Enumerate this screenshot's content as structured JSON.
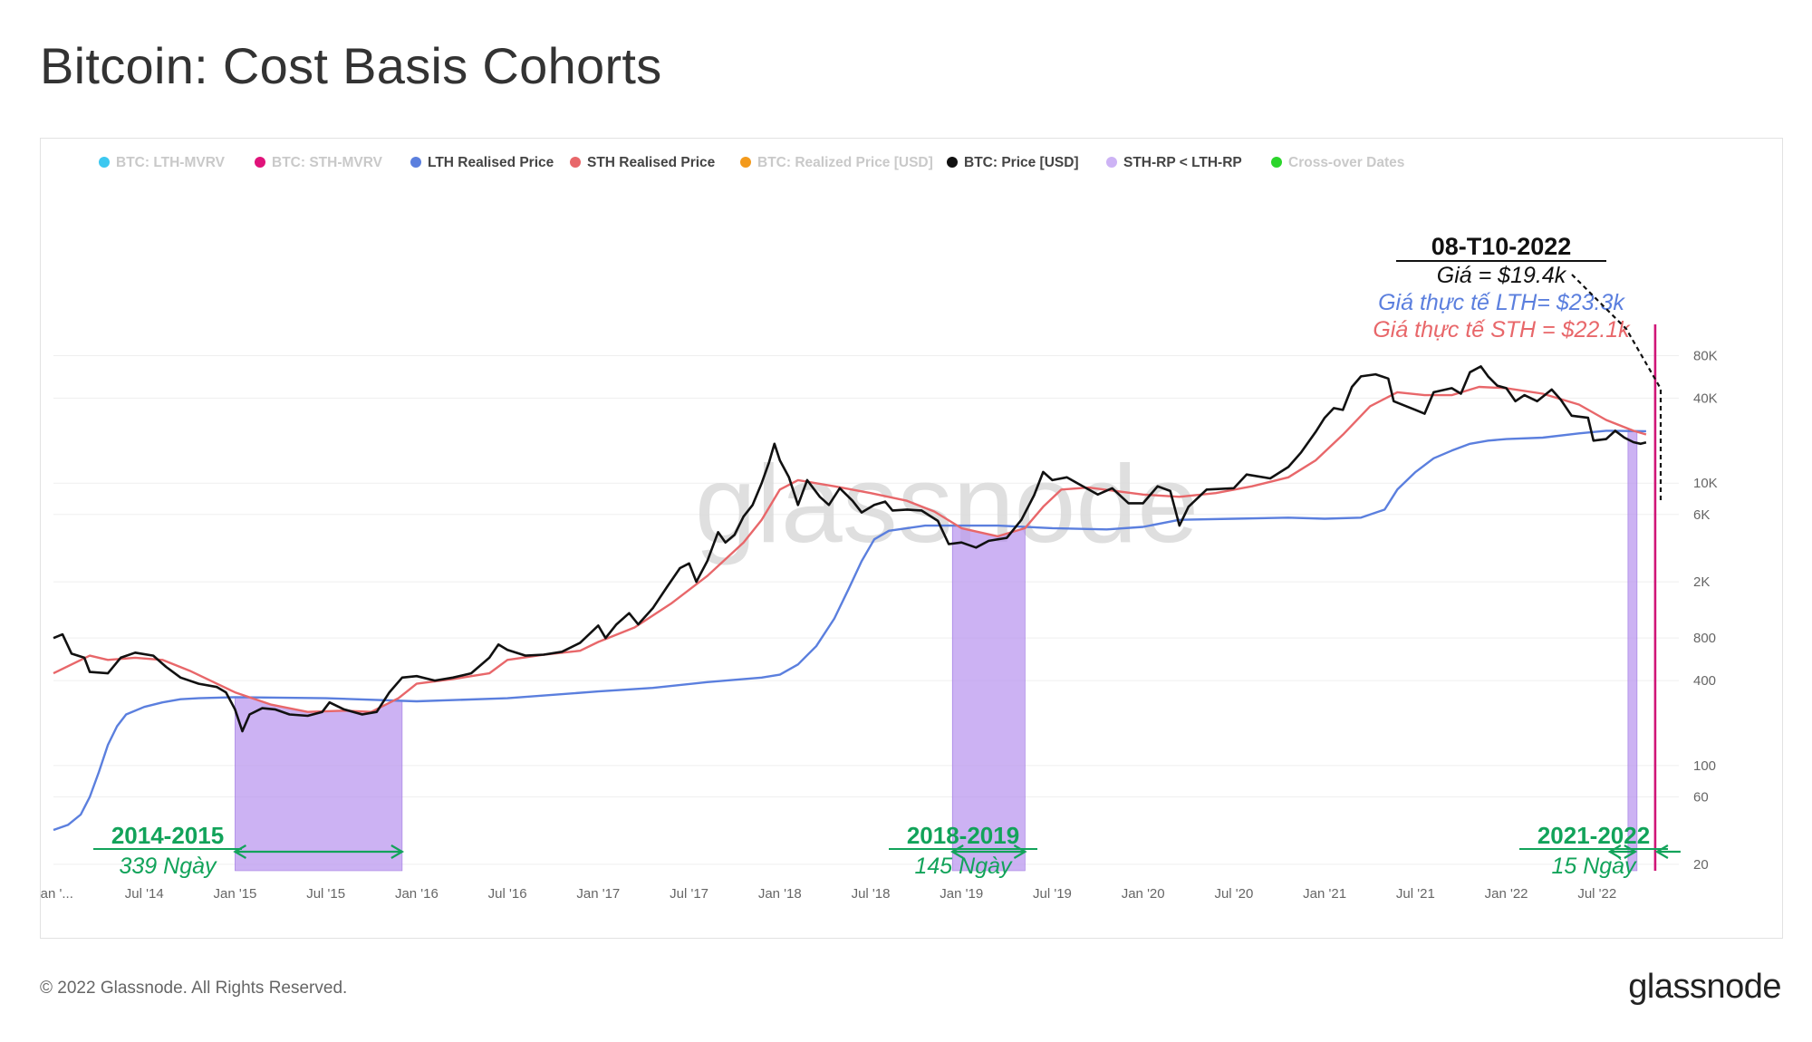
{
  "page": {
    "title": "Bitcoin: Cost Basis Cohorts",
    "copyright": "© 2022 Glassnode. All Rights Reserved.",
    "logo": "glassnode",
    "watermark": "glassnode"
  },
  "colors": {
    "lth": "#5b7fde",
    "sth": "#e8676a",
    "price": "#111111",
    "shade": "#b894ee",
    "date_line": "#d01577",
    "annotation_green": "#12a35a",
    "legend_faded": "#c9c9c9"
  },
  "legend": [
    {
      "label": "BTC: LTH-MVRV",
      "color": "#3cc8f0",
      "faded": true
    },
    {
      "label": "BTC: STH-MVRV",
      "color": "#e0137a",
      "faded": true
    },
    {
      "label": "LTH Realised Price",
      "color": "#5b7fde",
      "faded": false
    },
    {
      "label": "STH Realised Price",
      "color": "#e8676a",
      "faded": false
    },
    {
      "label": "BTC: Realized Price [USD]",
      "color": "#f39a1c",
      "faded": true
    },
    {
      "label": "BTC: Price [USD]",
      "color": "#111111",
      "faded": false
    },
    {
      "label": "STH-RP < LTH-RP",
      "color": "#cdb3f5",
      "faded": false
    },
    {
      "label": "Cross-over Dates",
      "color": "#2bd52b",
      "faded": true
    }
  ],
  "current_box": {
    "date": "08-T10-2022",
    "price_label": "Giá = $19.4k",
    "lth_label": "Giá thực tế LTH= $23.3k",
    "sth_label": "Giá thực tế STH = $22.1k"
  },
  "cohort_annotations": [
    {
      "period": "2014-2015",
      "duration": "339 Ngày",
      "start": 2015.0,
      "end": 2015.92
    },
    {
      "period": "2018-2019",
      "duration": "145 Ngày",
      "start": 2018.95,
      "end": 2019.35
    },
    {
      "period": "2021-2022",
      "duration": "15 Ngày",
      "start": 2022.67,
      "end": 2022.72
    }
  ],
  "chart_data": {
    "type": "line",
    "title": "Bitcoin: Cost Basis Cohorts",
    "y_scale": "log",
    "ylim": [
      18,
      120000
    ],
    "xlim": [
      2014.0,
      2022.95
    ],
    "x_ticks": [
      {
        "x": 2014.0,
        "label": "Jan '..."
      },
      {
        "x": 2014.5,
        "label": "Jul '14"
      },
      {
        "x": 2015.0,
        "label": "Jan '15"
      },
      {
        "x": 2015.5,
        "label": "Jul '15"
      },
      {
        "x": 2016.0,
        "label": "Jan '16"
      },
      {
        "x": 2016.5,
        "label": "Jul '16"
      },
      {
        "x": 2017.0,
        "label": "Jan '17"
      },
      {
        "x": 2017.5,
        "label": "Jul '17"
      },
      {
        "x": 2018.0,
        "label": "Jan '18"
      },
      {
        "x": 2018.5,
        "label": "Jul '18"
      },
      {
        "x": 2019.0,
        "label": "Jan '19"
      },
      {
        "x": 2019.5,
        "label": "Jul '19"
      },
      {
        "x": 2020.0,
        "label": "Jan '20"
      },
      {
        "x": 2020.5,
        "label": "Jul '20"
      },
      {
        "x": 2021.0,
        "label": "Jan '21"
      },
      {
        "x": 2021.5,
        "label": "Jul '21"
      },
      {
        "x": 2022.0,
        "label": "Jan '22"
      },
      {
        "x": 2022.5,
        "label": "Jul '22"
      }
    ],
    "y_ticks": [
      {
        "v": 20,
        "label": "20"
      },
      {
        "v": 60,
        "label": "60"
      },
      {
        "v": 100,
        "label": "100"
      },
      {
        "v": 400,
        "label": "400"
      },
      {
        "v": 800,
        "label": "800"
      },
      {
        "v": 2000,
        "label": "2K"
      },
      {
        "v": 6000,
        "label": "6K"
      },
      {
        "v": 10000,
        "label": "10K"
      },
      {
        "v": 40000,
        "label": "40K"
      },
      {
        "v": 80000,
        "label": "80K"
      }
    ],
    "grid": true,
    "shaded_periods": [
      {
        "start": 2015.0,
        "end": 2015.92,
        "label": "STH-RP < LTH-RP"
      },
      {
        "start": 2018.95,
        "end": 2019.35,
        "label": "STH-RP < LTH-RP"
      },
      {
        "start": 2022.67,
        "end": 2022.72,
        "label": "STH-RP < LTH-RP"
      }
    ],
    "current_date_x": 2022.77,
    "series": [
      {
        "name": "BTC: Price [USD]",
        "color": "#111111",
        "points": [
          [
            2014.0,
            800
          ],
          [
            2014.05,
            850
          ],
          [
            2014.1,
            620
          ],
          [
            2014.17,
            580
          ],
          [
            2014.2,
            460
          ],
          [
            2014.3,
            450
          ],
          [
            2014.37,
            580
          ],
          [
            2014.45,
            630
          ],
          [
            2014.55,
            600
          ],
          [
            2014.62,
            500
          ],
          [
            2014.7,
            420
          ],
          [
            2014.8,
            380
          ],
          [
            2014.9,
            360
          ],
          [
            2014.95,
            330
          ],
          [
            2015.0,
            250
          ],
          [
            2015.04,
            175
          ],
          [
            2015.08,
            230
          ],
          [
            2015.15,
            255
          ],
          [
            2015.22,
            250
          ],
          [
            2015.3,
            230
          ],
          [
            2015.4,
            225
          ],
          [
            2015.48,
            240
          ],
          [
            2015.52,
            280
          ],
          [
            2015.6,
            250
          ],
          [
            2015.7,
            230
          ],
          [
            2015.78,
            240
          ],
          [
            2015.85,
            330
          ],
          [
            2015.92,
            420
          ],
          [
            2016.0,
            430
          ],
          [
            2016.1,
            400
          ],
          [
            2016.2,
            420
          ],
          [
            2016.3,
            450
          ],
          [
            2016.4,
            580
          ],
          [
            2016.45,
            720
          ],
          [
            2016.5,
            660
          ],
          [
            2016.6,
            600
          ],
          [
            2016.7,
            610
          ],
          [
            2016.8,
            640
          ],
          [
            2016.9,
            740
          ],
          [
            2017.0,
            980
          ],
          [
            2017.04,
            800
          ],
          [
            2017.1,
            1000
          ],
          [
            2017.17,
            1200
          ],
          [
            2017.22,
            1000
          ],
          [
            2017.3,
            1300
          ],
          [
            2017.38,
            1850
          ],
          [
            2017.45,
            2500
          ],
          [
            2017.5,
            2700
          ],
          [
            2017.54,
            2000
          ],
          [
            2017.6,
            2800
          ],
          [
            2017.66,
            4500
          ],
          [
            2017.7,
            3800
          ],
          [
            2017.75,
            4300
          ],
          [
            2017.8,
            5800
          ],
          [
            2017.85,
            7000
          ],
          [
            2017.9,
            10000
          ],
          [
            2017.94,
            14000
          ],
          [
            2017.97,
            19000
          ],
          [
            2018.0,
            14500
          ],
          [
            2018.05,
            11000
          ],
          [
            2018.1,
            7000
          ],
          [
            2018.15,
            10500
          ],
          [
            2018.22,
            8000
          ],
          [
            2018.27,
            7000
          ],
          [
            2018.33,
            9200
          ],
          [
            2018.4,
            7500
          ],
          [
            2018.45,
            6200
          ],
          [
            2018.52,
            7000
          ],
          [
            2018.58,
            7400
          ],
          [
            2018.62,
            6400
          ],
          [
            2018.7,
            6500
          ],
          [
            2018.78,
            6400
          ],
          [
            2018.87,
            5400
          ],
          [
            2018.93,
            3700
          ],
          [
            2019.0,
            3800
          ],
          [
            2019.08,
            3500
          ],
          [
            2019.15,
            3900
          ],
          [
            2019.25,
            4100
          ],
          [
            2019.33,
            5500
          ],
          [
            2019.4,
            8200
          ],
          [
            2019.45,
            12000
          ],
          [
            2019.5,
            10500
          ],
          [
            2019.58,
            11000
          ],
          [
            2019.65,
            9800
          ],
          [
            2019.75,
            8300
          ],
          [
            2019.83,
            9200
          ],
          [
            2019.92,
            7200
          ],
          [
            2020.0,
            7200
          ],
          [
            2020.08,
            9500
          ],
          [
            2020.15,
            8800
          ],
          [
            2020.2,
            5000
          ],
          [
            2020.25,
            6800
          ],
          [
            2020.35,
            9000
          ],
          [
            2020.5,
            9200
          ],
          [
            2020.57,
            11500
          ],
          [
            2020.7,
            10800
          ],
          [
            2020.8,
            13000
          ],
          [
            2020.87,
            16500
          ],
          [
            2020.95,
            23000
          ],
          [
            2021.0,
            29000
          ],
          [
            2021.05,
            34000
          ],
          [
            2021.1,
            33000
          ],
          [
            2021.15,
            48000
          ],
          [
            2021.2,
            57000
          ],
          [
            2021.28,
            59000
          ],
          [
            2021.35,
            55000
          ],
          [
            2021.38,
            38000
          ],
          [
            2021.45,
            35000
          ],
          [
            2021.5,
            33000
          ],
          [
            2021.55,
            31000
          ],
          [
            2021.6,
            44000
          ],
          [
            2021.7,
            47000
          ],
          [
            2021.75,
            43000
          ],
          [
            2021.8,
            61000
          ],
          [
            2021.86,
            67000
          ],
          [
            2021.9,
            57000
          ],
          [
            2021.95,
            49000
          ],
          [
            2022.0,
            47000
          ],
          [
            2022.05,
            38000
          ],
          [
            2022.1,
            42000
          ],
          [
            2022.17,
            38000
          ],
          [
            2022.25,
            46000
          ],
          [
            2022.3,
            39000
          ],
          [
            2022.36,
            30000
          ],
          [
            2022.45,
            29000
          ],
          [
            2022.48,
            20000
          ],
          [
            2022.55,
            20500
          ],
          [
            2022.6,
            23500
          ],
          [
            2022.65,
            21000
          ],
          [
            2022.7,
            19500
          ],
          [
            2022.74,
            19000
          ],
          [
            2022.77,
            19400
          ]
        ]
      },
      {
        "name": "LTH Realised Price",
        "color": "#5b7fde",
        "points": [
          [
            2014.0,
            35
          ],
          [
            2014.08,
            38
          ],
          [
            2014.15,
            45
          ],
          [
            2014.2,
            60
          ],
          [
            2014.25,
            90
          ],
          [
            2014.3,
            140
          ],
          [
            2014.35,
            190
          ],
          [
            2014.4,
            230
          ],
          [
            2014.5,
            260
          ],
          [
            2014.6,
            280
          ],
          [
            2014.7,
            295
          ],
          [
            2014.8,
            300
          ],
          [
            2015.0,
            305
          ],
          [
            2015.5,
            300
          ],
          [
            2016.0,
            285
          ],
          [
            2016.5,
            300
          ],
          [
            2017.0,
            335
          ],
          [
            2017.3,
            355
          ],
          [
            2017.6,
            390
          ],
          [
            2017.9,
            420
          ],
          [
            2018.0,
            440
          ],
          [
            2018.1,
            520
          ],
          [
            2018.2,
            700
          ],
          [
            2018.3,
            1100
          ],
          [
            2018.38,
            1800
          ],
          [
            2018.45,
            2800
          ],
          [
            2018.52,
            4000
          ],
          [
            2018.6,
            4600
          ],
          [
            2018.8,
            5000
          ],
          [
            2019.0,
            5000
          ],
          [
            2019.2,
            5000
          ],
          [
            2019.5,
            4800
          ],
          [
            2019.8,
            4700
          ],
          [
            2020.0,
            4900
          ],
          [
            2020.2,
            5500
          ],
          [
            2020.5,
            5600
          ],
          [
            2020.8,
            5700
          ],
          [
            2021.0,
            5600
          ],
          [
            2021.2,
            5700
          ],
          [
            2021.33,
            6500
          ],
          [
            2021.4,
            9000
          ],
          [
            2021.5,
            12000
          ],
          [
            2021.6,
            15000
          ],
          [
            2021.7,
            17000
          ],
          [
            2021.8,
            19000
          ],
          [
            2021.9,
            20000
          ],
          [
            2022.0,
            20500
          ],
          [
            2022.2,
            21000
          ],
          [
            2022.4,
            22500
          ],
          [
            2022.55,
            23500
          ],
          [
            2022.77,
            23300
          ]
        ]
      },
      {
        "name": "STH Realised Price",
        "color": "#e8676a",
        "points": [
          [
            2014.0,
            450
          ],
          [
            2014.1,
            520
          ],
          [
            2014.2,
            600
          ],
          [
            2014.3,
            560
          ],
          [
            2014.45,
            580
          ],
          [
            2014.6,
            560
          ],
          [
            2014.75,
            470
          ],
          [
            2014.9,
            380
          ],
          [
            2015.0,
            330
          ],
          [
            2015.2,
            270
          ],
          [
            2015.4,
            240
          ],
          [
            2015.6,
            245
          ],
          [
            2015.75,
            240
          ],
          [
            2015.9,
            300
          ],
          [
            2016.0,
            380
          ],
          [
            2016.2,
            410
          ],
          [
            2016.4,
            450
          ],
          [
            2016.5,
            560
          ],
          [
            2016.7,
            610
          ],
          [
            2016.9,
            650
          ],
          [
            2017.0,
            750
          ],
          [
            2017.2,
            950
          ],
          [
            2017.4,
            1400
          ],
          [
            2017.6,
            2200
          ],
          [
            2017.8,
            3800
          ],
          [
            2017.9,
            5500
          ],
          [
            2018.0,
            9000
          ],
          [
            2018.1,
            10500
          ],
          [
            2018.3,
            9500
          ],
          [
            2018.5,
            8500
          ],
          [
            2018.7,
            7500
          ],
          [
            2018.85,
            6300
          ],
          [
            2019.0,
            4800
          ],
          [
            2019.2,
            4200
          ],
          [
            2019.35,
            4800
          ],
          [
            2019.45,
            6800
          ],
          [
            2019.55,
            9000
          ],
          [
            2019.7,
            9300
          ],
          [
            2019.85,
            8800
          ],
          [
            2020.0,
            8300
          ],
          [
            2020.2,
            8000
          ],
          [
            2020.4,
            8500
          ],
          [
            2020.6,
            9500
          ],
          [
            2020.8,
            11000
          ],
          [
            2020.95,
            14500
          ],
          [
            2021.1,
            22000
          ],
          [
            2021.25,
            35000
          ],
          [
            2021.4,
            44000
          ],
          [
            2021.55,
            42000
          ],
          [
            2021.7,
            42000
          ],
          [
            2021.85,
            48000
          ],
          [
            2022.0,
            47000
          ],
          [
            2022.2,
            43000
          ],
          [
            2022.4,
            36000
          ],
          [
            2022.55,
            28000
          ],
          [
            2022.7,
            23500
          ],
          [
            2022.77,
            22100
          ]
        ]
      }
    ]
  }
}
